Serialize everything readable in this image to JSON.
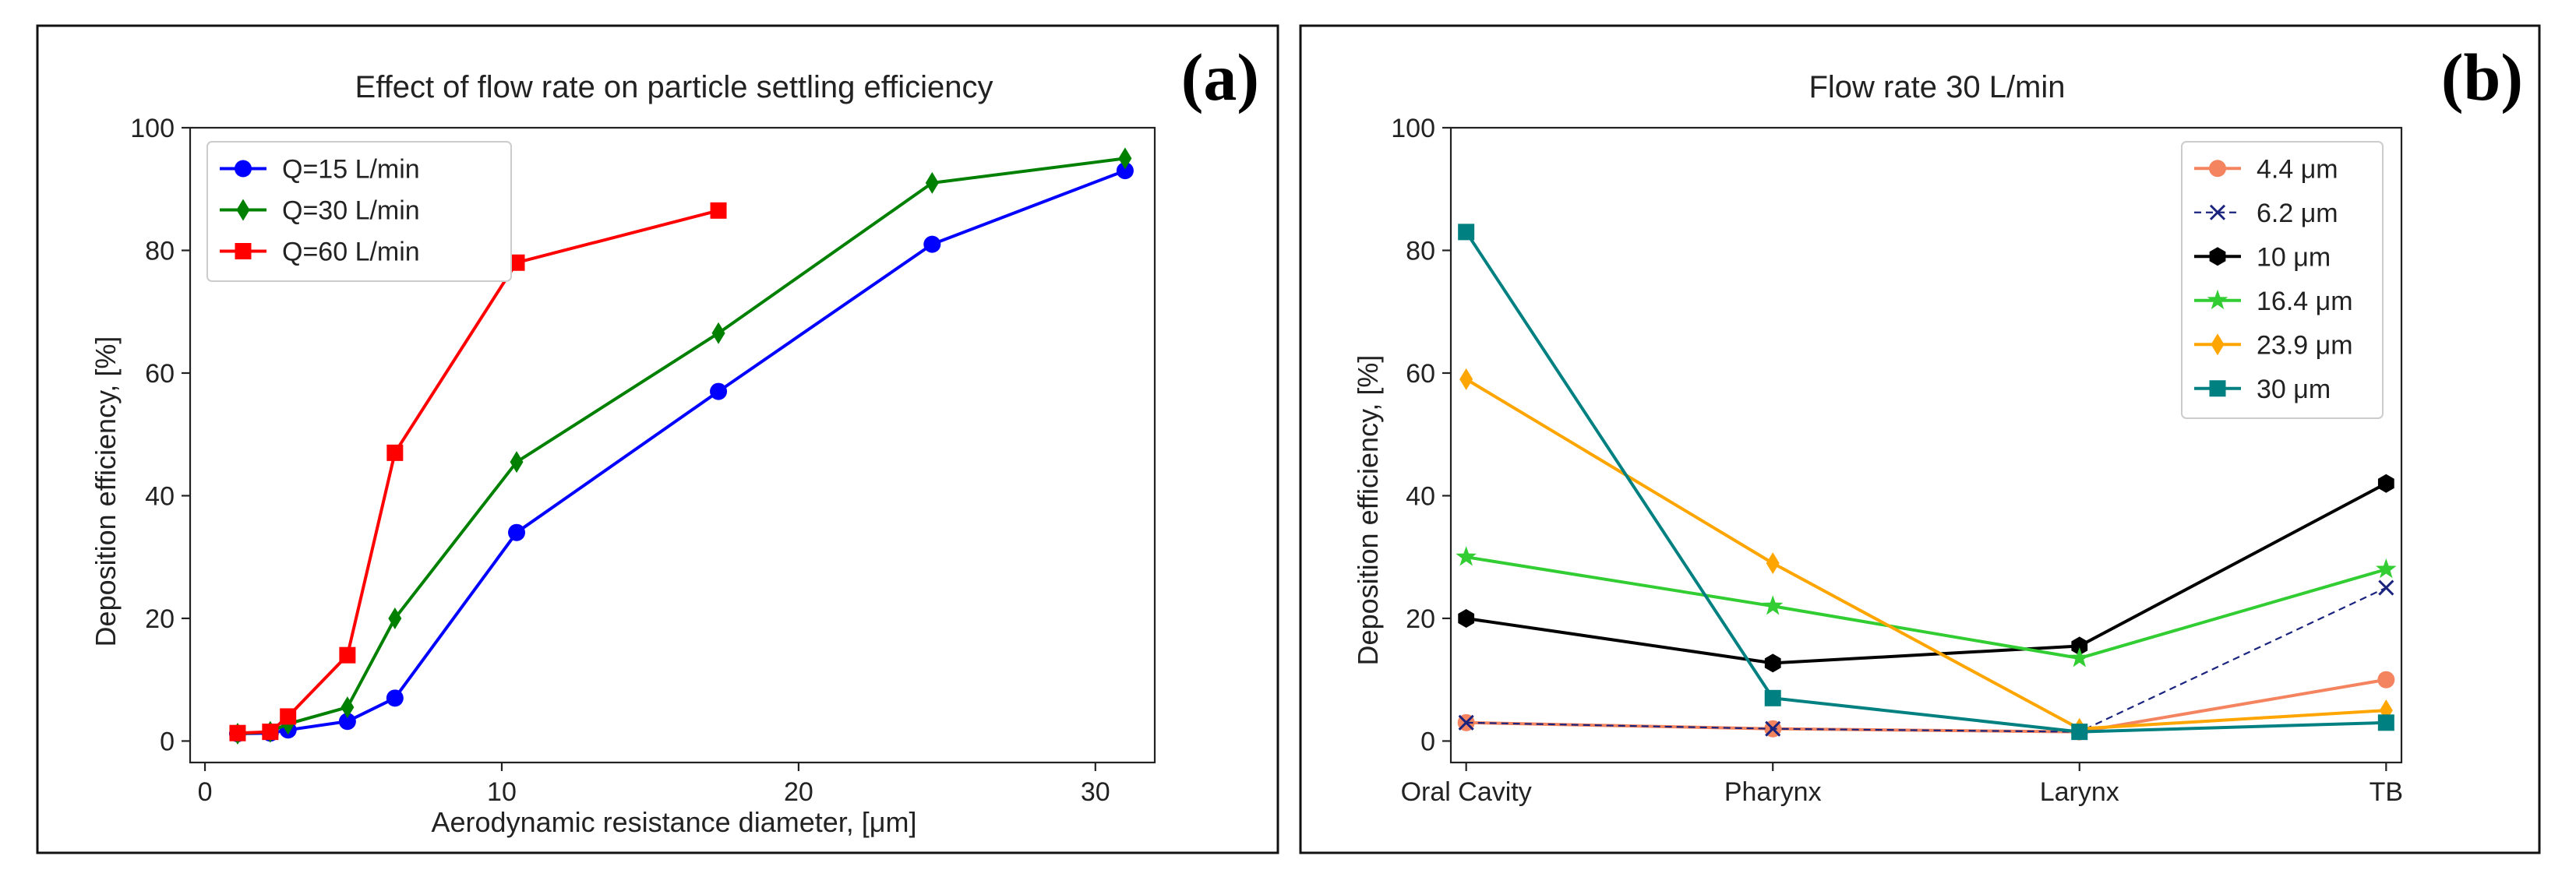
{
  "chart_data": [
    {
      "id": "a",
      "type": "line",
      "panel_label": "(a)",
      "title": "Effect of flow rate on particle settling efficiency",
      "xlabel": "Aerodynamic resistance diameter, [μm]",
      "ylabel": "Deposition efficiency, [%]",
      "xlim": [
        -0.5,
        32
      ],
      "ylim": [
        -3.5,
        100
      ],
      "xticks": [
        0,
        10,
        20,
        30
      ],
      "yticks": [
        0,
        20,
        40,
        60,
        80,
        100
      ],
      "grid": false,
      "legend_position": "top-left",
      "series": [
        {
          "name": "Q=15 L/min",
          "color": "#0000ff",
          "marker": "circle",
          "line": "solid",
          "x": [
            1.1,
            2.2,
            2.8,
            4.8,
            6.4,
            10.5,
            17.3,
            24.5,
            31
          ],
          "y": [
            1.2,
            1.3,
            1.8,
            3.2,
            7,
            34,
            57,
            81,
            93
          ]
        },
        {
          "name": "Q=30 L/min",
          "color": "#008000",
          "marker": "diamond",
          "line": "solid",
          "x": [
            1.1,
            2.2,
            2.8,
            4.8,
            6.4,
            10.5,
            17.3,
            24.5,
            31
          ],
          "y": [
            1.2,
            1.5,
            2.8,
            5.5,
            20,
            45.5,
            66.5,
            91,
            95
          ]
        },
        {
          "name": "Q=60 L/min",
          "color": "#ff0000",
          "marker": "square",
          "line": "solid",
          "x": [
            1.1,
            2.2,
            2.8,
            4.8,
            6.4,
            10.5,
            17.3
          ],
          "y": [
            1.3,
            1.5,
            4,
            14,
            47,
            78,
            86.5
          ]
        }
      ]
    },
    {
      "id": "b",
      "type": "line",
      "panel_label": "(b)",
      "title": "Flow rate 30 L/min",
      "xlabel": "",
      "ylabel": "Deposition efficiency, [%]",
      "categories": [
        "Oral Cavity",
        "Pharynx",
        "Larynx",
        "TB"
      ],
      "ylim": [
        -3.5,
        100
      ],
      "yticks": [
        0,
        20,
        40,
        60,
        80,
        100
      ],
      "grid": false,
      "legend_position": "top-right",
      "series": [
        {
          "name": "4.4 μm",
          "color": "#f4845f",
          "marker": "circle",
          "line": "solid",
          "values": [
            3,
            2,
            1.5,
            10
          ]
        },
        {
          "name": "6.2 μm",
          "color": "#1a237e",
          "marker": "x",
          "line": "dashed",
          "values": [
            3,
            2,
            1.5,
            25
          ]
        },
        {
          "name": "10 μm",
          "color": "#000000",
          "marker": "hexagon",
          "line": "solid",
          "values": [
            20,
            12.7,
            15.5,
            42
          ]
        },
        {
          "name": "16.4 μm",
          "color": "#32cd32",
          "marker": "star",
          "line": "solid",
          "values": [
            30,
            22,
            13.5,
            28
          ]
        },
        {
          "name": "23.9 μm",
          "color": "#ffa500",
          "marker": "diamond",
          "line": "solid",
          "values": [
            59,
            29,
            2,
            5
          ]
        },
        {
          "name": "30 μm",
          "color": "#008080",
          "marker": "square",
          "line": "solid",
          "values": [
            83,
            7,
            1.5,
            3
          ]
        }
      ]
    }
  ]
}
